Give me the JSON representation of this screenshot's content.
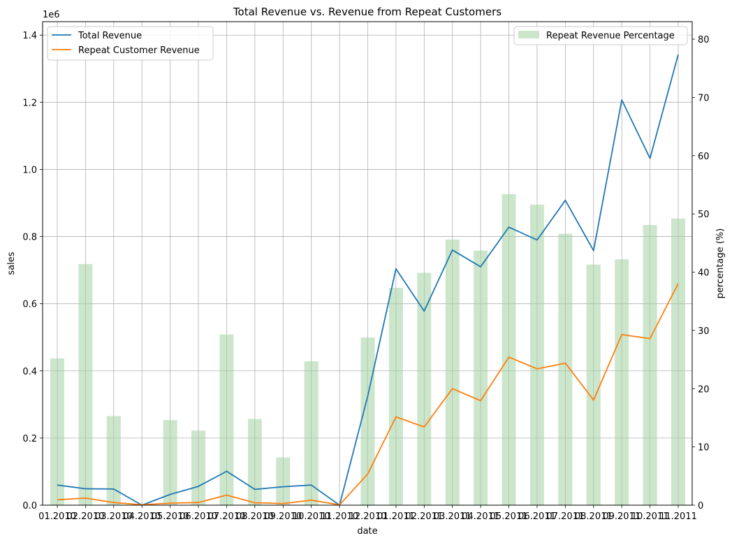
{
  "chart_data": {
    "type": "bar+line",
    "title": "Total Revenue vs. Revenue from Repeat Customers",
    "xlabel": "date",
    "ylabel_left": "sales",
    "ylabel_right": "percentage (%)",
    "left_axis_multiplier": "1e6",
    "grid": true,
    "categories": [
      "01.2010",
      "02.2010",
      "03.2010",
      "04.2010",
      "05.2010",
      "06.2010",
      "07.2010",
      "08.2010",
      "09.2010",
      "10.2010",
      "11.2010",
      "12.2010",
      "01.2011",
      "02.2011",
      "03.2011",
      "04.2011",
      "05.2011",
      "06.2011",
      "07.2011",
      "08.2011",
      "09.2011",
      "10.2011",
      "11.2011"
    ],
    "left_axis": {
      "ylim": [
        0,
        1.44
      ],
      "ticks": [
        "0.0",
        "0.2",
        "0.4",
        "0.6",
        "0.8",
        "1.0",
        "1.2",
        "1.4"
      ]
    },
    "right_axis": {
      "ylim": [
        0,
        83
      ],
      "ticks": [
        "0",
        "10",
        "20",
        "30",
        "40",
        "50",
        "60",
        "70",
        "80"
      ]
    },
    "lines": [
      {
        "name": "Total Revenue",
        "color": "#1f77b4",
        "values": [
          0.06,
          0.049,
          0.048,
          0.0,
          0.032,
          0.056,
          0.101,
          0.047,
          0.055,
          0.06,
          0.0,
          0.325,
          0.704,
          0.578,
          0.76,
          0.71,
          0.828,
          0.79,
          0.908,
          0.758,
          1.207,
          1.033,
          1.342
        ]
      },
      {
        "name": "Repeat Customer Revenue",
        "color": "#ff7f0e",
        "values": [
          0.016,
          0.021,
          0.008,
          0.001,
          0.006,
          0.008,
          0.03,
          0.007,
          0.005,
          0.015,
          0.001,
          0.093,
          0.263,
          0.233,
          0.347,
          0.311,
          0.441,
          0.406,
          0.423,
          0.313,
          0.508,
          0.496,
          0.66
        ]
      }
    ],
    "bars": {
      "name": "Repeat Revenue Percentage",
      "color": "#a3d1a3",
      "values": [
        25.2,
        41.4,
        15.3,
        0,
        14.6,
        12.8,
        29.3,
        14.8,
        8.2,
        24.7,
        0,
        28.8,
        37.3,
        39.9,
        45.6,
        43.7,
        53.4,
        51.6,
        46.6,
        41.3,
        42.2,
        48.1,
        49.2
      ]
    },
    "legend_left_placement": "upper-left",
    "legend_right_placement": "upper-right"
  }
}
